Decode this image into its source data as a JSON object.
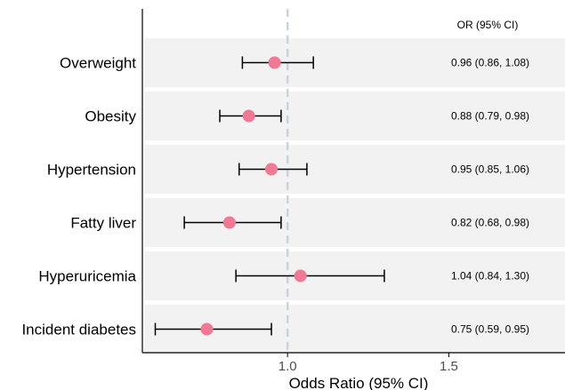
{
  "chart_data": {
    "type": "forest",
    "xlabel": "Odds Ratio (95% CI)",
    "xlim": [
      0.55,
      1.86
    ],
    "xticks": [
      "1.0",
      "1.5"
    ],
    "xtick_values": [
      1.0,
      1.5
    ],
    "reference_line": 1.0,
    "ci_header": "OR (95% CI)",
    "rows": [
      {
        "label": "Overweight",
        "or": 0.96,
        "lower": 0.86,
        "upper": 1.08,
        "text": "0.96 (0.86, 1.08)"
      },
      {
        "label": "Obesity",
        "or": 0.88,
        "lower": 0.79,
        "upper": 0.98,
        "text": "0.88 (0.79, 0.98)"
      },
      {
        "label": "Hypertension",
        "or": 0.95,
        "lower": 0.85,
        "upper": 1.06,
        "text": "0.95 (0.85, 1.06)"
      },
      {
        "label": "Fatty liver",
        "or": 0.82,
        "lower": 0.68,
        "upper": 0.98,
        "text": "0.82 (0.68, 0.98)"
      },
      {
        "label": "Hyperuricemia",
        "or": 1.04,
        "lower": 0.84,
        "upper": 1.3,
        "text": "1.04 (0.84, 1.30)"
      },
      {
        "label": "Incident diabetes",
        "or": 0.75,
        "lower": 0.59,
        "upper": 0.95,
        "text": "0.75 (0.59, 0.95)"
      }
    ],
    "colors": {
      "point": "#f07a95",
      "band": "#f2f2f2",
      "ref_line": "#c9d3df",
      "whisker": "#000000"
    },
    "grid": false
  }
}
